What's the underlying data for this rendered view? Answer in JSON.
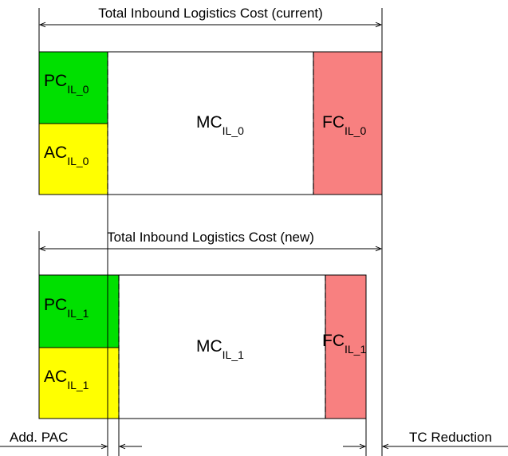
{
  "current": {
    "title": "Total Inbound Logistics Cost (current)",
    "pc": {
      "base": "PC",
      "sub": "IL_0"
    },
    "ac": {
      "base": "AC",
      "sub": "IL_0"
    },
    "mc": {
      "base": "MC",
      "sub": "IL_0"
    },
    "fc": {
      "base": "FC",
      "sub": "IL_0"
    }
  },
  "new": {
    "title": "Total Inbound Logistics Cost (new)",
    "pc": {
      "base": "PC",
      "sub": "IL_1"
    },
    "ac": {
      "base": "AC",
      "sub": "IL_1"
    },
    "mc": {
      "base": "MC",
      "sub": "IL_1"
    },
    "fc": {
      "base": "FC",
      "sub": "IL_1"
    }
  },
  "bottom_labels": {
    "add_pac": "Add. PAC",
    "tc_reduction": "TC Reduction"
  },
  "colors": {
    "pc": "#00e000",
    "ac": "#ffff00",
    "fc": "#f88080",
    "mc": "#ffffff"
  }
}
